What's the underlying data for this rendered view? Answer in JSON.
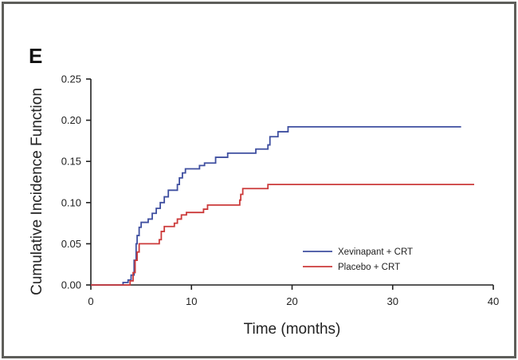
{
  "panel_label": "E",
  "chart_data": {
    "type": "line",
    "step": true,
    "title": "",
    "xlabel": "Time (months)",
    "ylabel": "Cumulative Incidence Function",
    "xlim": [
      0,
      40
    ],
    "ylim": [
      0,
      0.25
    ],
    "x_ticks": [
      0,
      10,
      20,
      30,
      40
    ],
    "x_tick_labels": [
      "0",
      "10",
      "20",
      "30",
      "40"
    ],
    "y_ticks": [
      0,
      0.05,
      0.1,
      0.15,
      0.2,
      0.25
    ],
    "y_tick_labels": [
      "0.00",
      "0.05",
      "0.10",
      "0.15",
      "0.20",
      "0.25"
    ],
    "grid": false,
    "legend_position": "lower-right",
    "series": [
      {
        "name": "Xevinapant + CRT",
        "color": "#3f4fa0",
        "x": [
          0,
          3.2,
          3.7,
          4.0,
          4.3,
          4.5,
          4.6,
          4.8,
          5.0,
          5.7,
          6.1,
          6.5,
          6.9,
          7.3,
          7.7,
          8.6,
          8.8,
          9.1,
          9.4,
          10.8,
          11.3,
          12.4,
          13.6,
          16.4,
          17.6,
          17.8,
          18.6,
          19.6,
          36.8
        ],
        "y": [
          0,
          0.003,
          0.006,
          0.012,
          0.03,
          0.05,
          0.06,
          0.07,
          0.076,
          0.08,
          0.087,
          0.093,
          0.1,
          0.107,
          0.115,
          0.122,
          0.13,
          0.136,
          0.141,
          0.145,
          0.148,
          0.155,
          0.16,
          0.165,
          0.17,
          0.18,
          0.186,
          0.192,
          0.192
        ]
      },
      {
        "name": "Placebo + CRT",
        "color": "#cc3a3a",
        "x": [
          0,
          3.9,
          4.2,
          4.4,
          4.6,
          4.8,
          6.8,
          7.0,
          7.3,
          8.3,
          8.6,
          9.0,
          9.5,
          11.2,
          11.6,
          14.8,
          14.9,
          15.1,
          17.6,
          38.1
        ],
        "y": [
          0,
          0.005,
          0.015,
          0.03,
          0.04,
          0.05,
          0.055,
          0.065,
          0.071,
          0.075,
          0.08,
          0.085,
          0.088,
          0.092,
          0.097,
          0.103,
          0.11,
          0.117,
          0.122,
          0.122
        ]
      }
    ]
  }
}
